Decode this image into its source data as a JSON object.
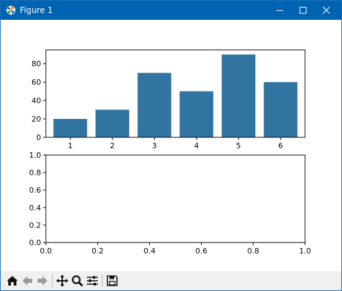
{
  "window": {
    "title": "Figure 1",
    "controls": [
      "minimize-icon",
      "maximize-icon",
      "close-icon"
    ]
  },
  "colors": {
    "titlebar": "#0063b1",
    "bar": "#3274a1",
    "toolbar": "#f0f0f0"
  },
  "toolbar": {
    "items": [
      "home-icon",
      "back-icon",
      "forward-icon",
      "pan-icon",
      "zoom-icon",
      "configure-subplots-icon",
      "save-icon"
    ]
  },
  "chart_data": [
    {
      "type": "bar",
      "categories": [
        "1",
        "2",
        "3",
        "4",
        "5",
        "6"
      ],
      "values": [
        20,
        30,
        70,
        50,
        90,
        60
      ],
      "ylim": [
        0,
        95
      ],
      "yticks": [
        "0",
        "20",
        "40",
        "60",
        "80"
      ],
      "title": "",
      "xlabel": "",
      "ylabel": "",
      "grid": false
    },
    {
      "type": "line",
      "series": [],
      "xlim": [
        0.0,
        1.0
      ],
      "ylim": [
        0.0,
        1.0
      ],
      "xticks": [
        "0.0",
        "0.2",
        "0.4",
        "0.6",
        "0.8",
        "1.0"
      ],
      "yticks": [
        "0.0",
        "0.2",
        "0.4",
        "0.6",
        "0.8",
        "1.0"
      ],
      "title": "",
      "xlabel": "",
      "ylabel": "",
      "grid": false
    }
  ]
}
